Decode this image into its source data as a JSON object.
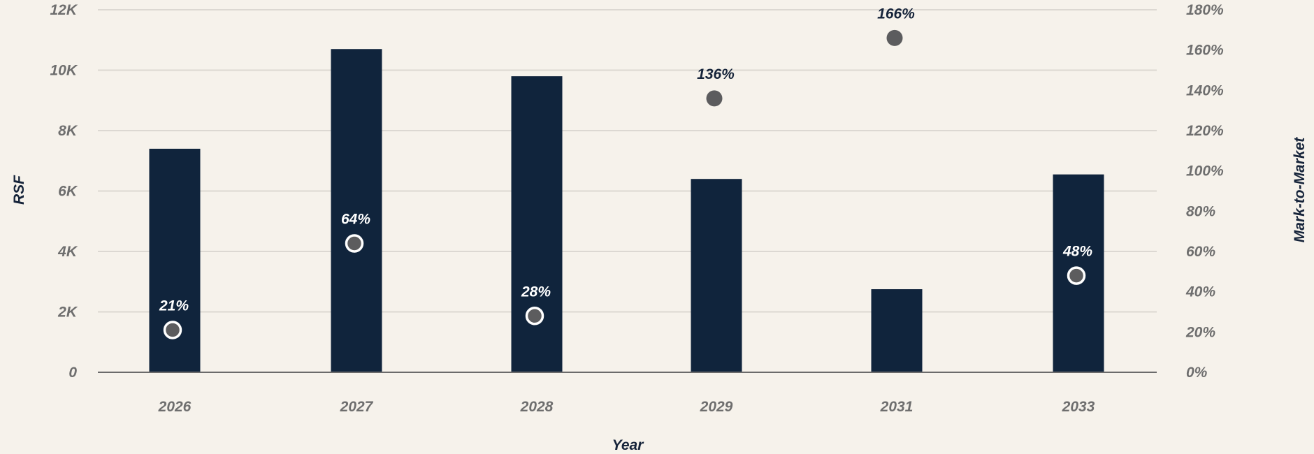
{
  "chart_data": {
    "type": "bar",
    "categories": [
      "2026",
      "2027",
      "2028",
      "2029",
      "2031",
      "2033"
    ],
    "series": [
      {
        "type": "bar",
        "axis": "left",
        "values": [
          7400,
          10700,
          9800,
          6400,
          2750,
          6550
        ],
        "color": "#10243c"
      },
      {
        "type": "scatter",
        "axis": "right",
        "values": [
          21,
          64,
          28,
          136,
          166,
          48
        ],
        "labels": [
          "21%",
          "64%",
          "28%",
          "136%",
          "166%",
          "48%"
        ],
        "color": "#5c5c5e"
      }
    ],
    "xlabel": "Year",
    "ylabel": "RSF",
    "y2label": "Mark-to-Market",
    "ylim": [
      0,
      12000
    ],
    "y2lim": [
      0,
      180
    ],
    "yticks": [
      "0",
      "2K",
      "4K",
      "6K",
      "8K",
      "10K",
      "12K"
    ],
    "y2ticks": [
      "0%",
      "20%",
      "40%",
      "60%",
      "80%",
      "100%",
      "120%",
      "140%",
      "160%",
      "180%"
    ],
    "grid": true,
    "legend": "none",
    "colors": {
      "background": "#f6f2eb",
      "bar": "#10243c",
      "marker": "#5c5c5e",
      "grid": "#dcd8d2",
      "axis_line": "#6b6b6b",
      "tick_text": "#6e6e6e",
      "title_text": "#16243a"
    }
  }
}
